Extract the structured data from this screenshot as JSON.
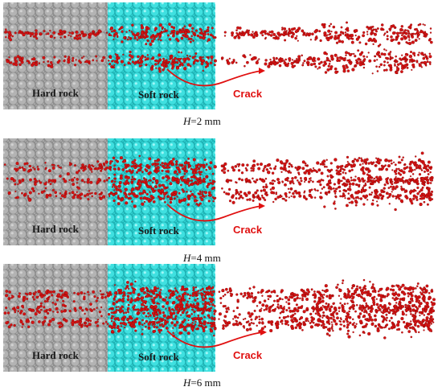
{
  "panels": [
    {
      "id": "h2",
      "region_labels": {
        "hard": "Hard rock",
        "soft": "Soft rock"
      },
      "crack_label": "Crack",
      "caption": {
        "var": "H",
        "rest": "=2 mm"
      },
      "crack_intensity": 0.45
    },
    {
      "id": "h4",
      "region_labels": {
        "hard": "Hard rock",
        "soft": "Soft rock"
      },
      "crack_label": "Crack",
      "caption": {
        "var": "H",
        "rest": "=4 mm"
      },
      "crack_intensity": 0.75
    },
    {
      "id": "h6",
      "region_labels": {
        "hard": "Hard rock",
        "soft": "Soft rock"
      },
      "crack_label": "Crack",
      "caption": {
        "var": "H",
        "rest": "=6 mm"
      },
      "crack_intensity": 1.0
    }
  ],
  "colors": {
    "hard_rock": "#9a9a9a",
    "soft_rock": "#2fd6d6",
    "crack": "#d41414"
  }
}
